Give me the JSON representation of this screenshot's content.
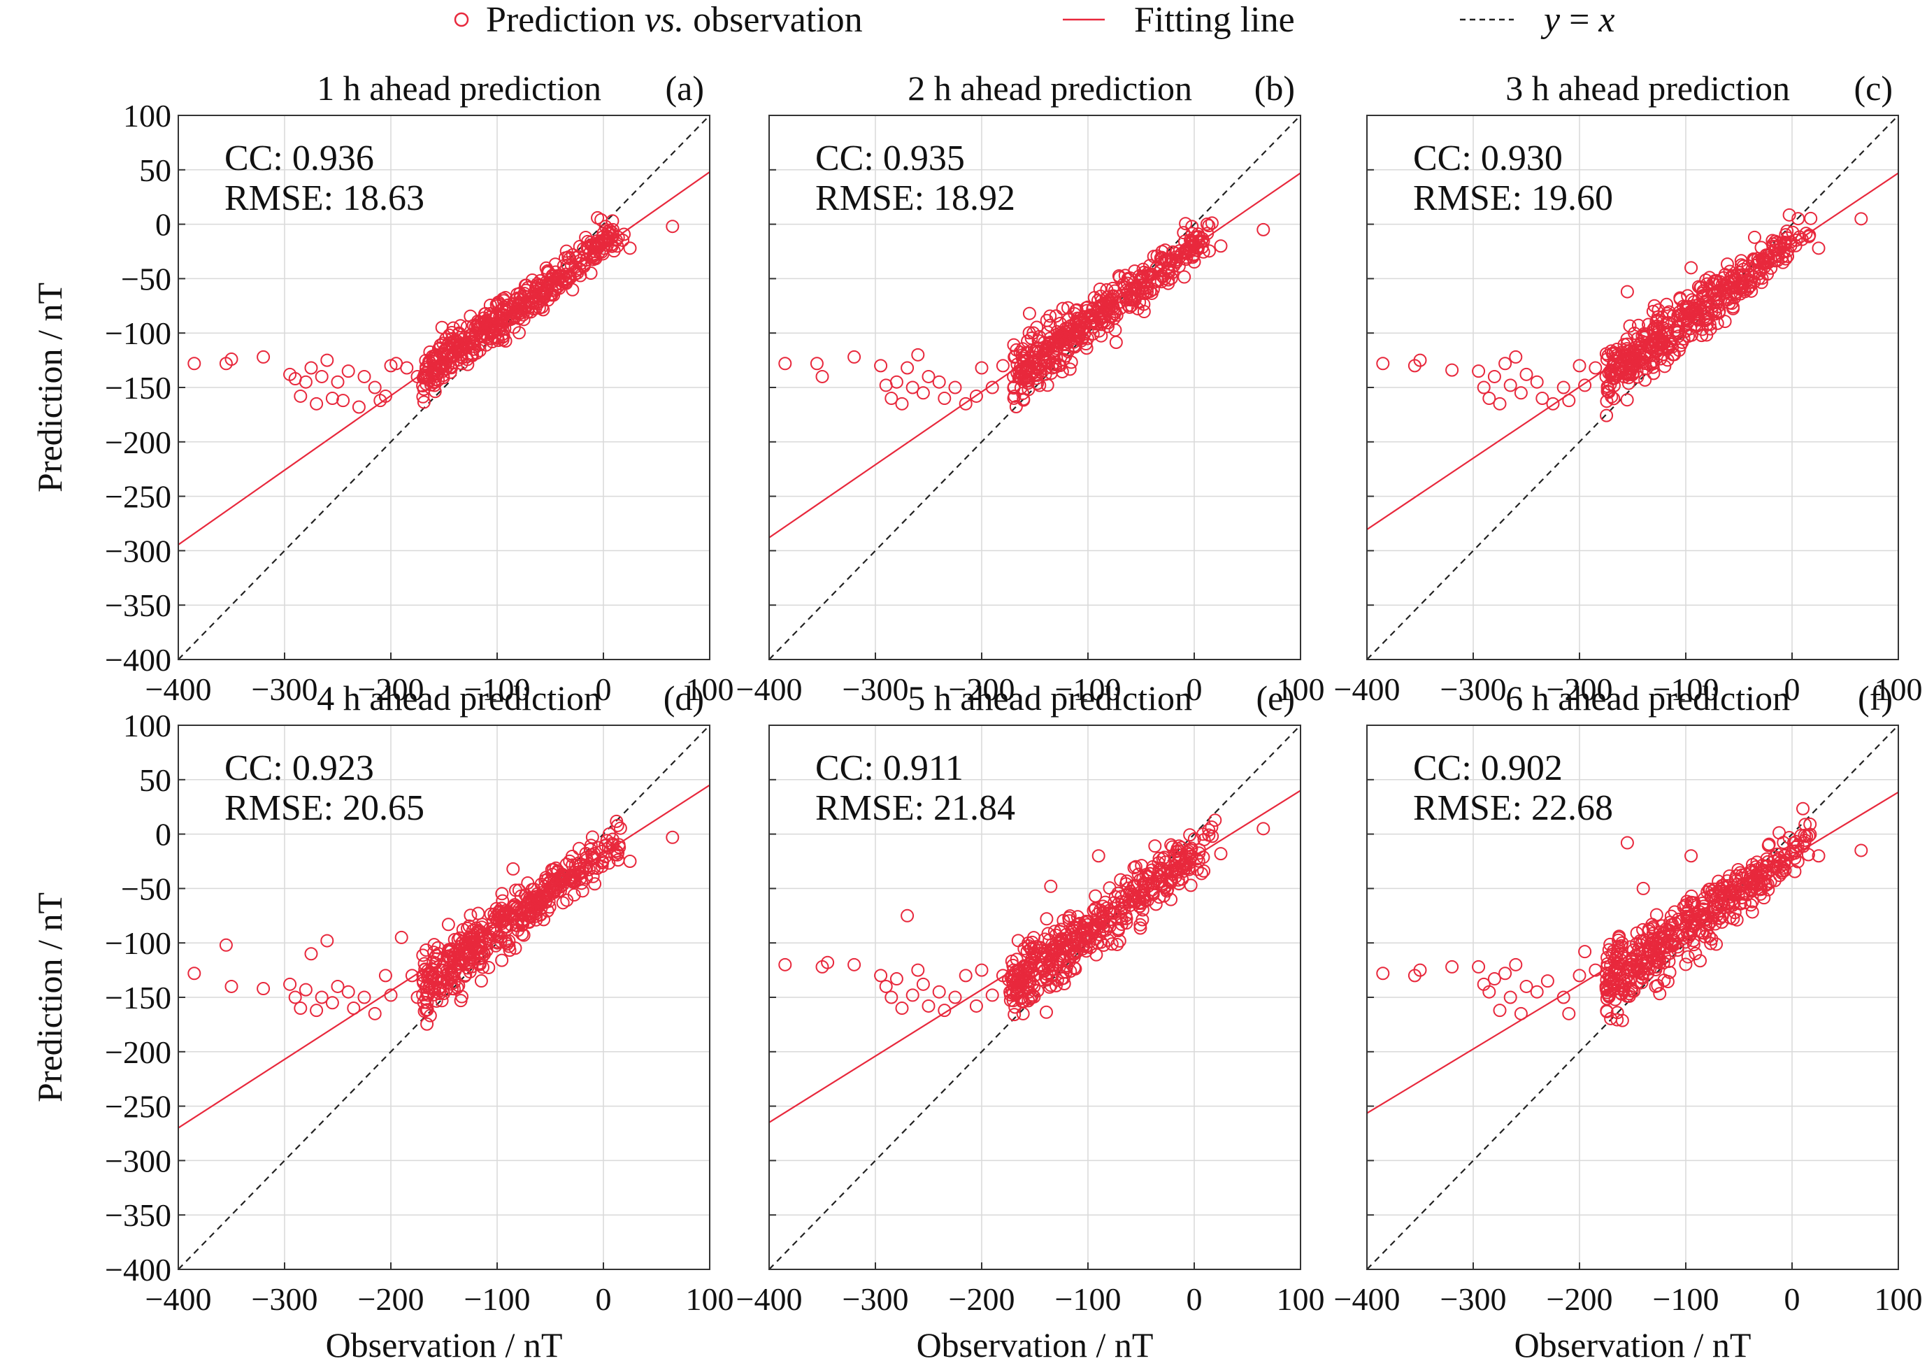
{
  "legend": {
    "scatter_label": "Prediction",
    "scatter_label_vs": "vs.",
    "scatter_label_tail": "observation",
    "fit_label": "Fitting line",
    "ident_label_y": "y",
    "ident_label_eq": " = ",
    "ident_label_x": "x"
  },
  "colors": {
    "scatter": "#e8283c",
    "fit": "#e8283c",
    "identity": "#222222",
    "grid": "#d9d9d9",
    "axis": "#333333"
  },
  "chart_data": [
    {
      "type": "scatter",
      "title": "1 h ahead prediction",
      "tag": "(a)",
      "cc_text": "CC: 0.936",
      "rmse_text": "RMSE: 18.63",
      "xlabel": "",
      "ylabel": "Prediction / nT",
      "xlim": [
        -400,
        100
      ],
      "ylim": [
        -400,
        100
      ],
      "xticks": [
        "−400",
        "−300",
        "−200",
        "−100",
        "0",
        "100"
      ],
      "yticks": [
        "100",
        "50",
        "0",
        "−50",
        "−100",
        "−150",
        "−200",
        "−250",
        "−300",
        "−350",
        "−400"
      ],
      "fit": {
        "slope": 0.685,
        "intercept": -20.5
      },
      "outliers": [
        [
          -385,
          -128
        ],
        [
          -355,
          -128
        ],
        [
          -350,
          -124
        ],
        [
          -320,
          -122
        ],
        [
          -295,
          -138
        ],
        [
          -290,
          -142
        ],
        [
          -285,
          -158
        ],
        [
          -280,
          -145
        ],
        [
          -275,
          -132
        ],
        [
          -270,
          -165
        ],
        [
          -265,
          -140
        ],
        [
          -260,
          -125
        ],
        [
          -255,
          -160
        ],
        [
          -250,
          -145
        ],
        [
          -245,
          -162
        ],
        [
          -240,
          -135
        ],
        [
          -230,
          -168
        ],
        [
          -225,
          -140
        ],
        [
          -215,
          -150
        ],
        [
          -210,
          -162
        ],
        [
          -205,
          -158
        ],
        [
          -200,
          -130
        ],
        [
          -195,
          -128
        ],
        [
          -185,
          -132
        ],
        [
          -175,
          -140
        ],
        [
          65,
          -2
        ],
        [
          25,
          -22
        ]
      ],
      "main": {
        "x0": -170,
        "x1": 20,
        "noise": 12,
        "n": 430,
        "seed": 11,
        "slope": 0.72,
        "intercept": -18
      }
    },
    {
      "type": "scatter",
      "title": "2 h ahead prediction",
      "tag": "(b)",
      "cc_text": "CC: 0.935",
      "rmse_text": "RMSE: 18.92",
      "xlabel": "",
      "ylabel": "",
      "xlim": [
        -400,
        100
      ],
      "ylim": [
        -400,
        100
      ],
      "xticks": [
        "−400",
        "−300",
        "−200",
        "−100",
        "0",
        "100"
      ],
      "yticks": [],
      "fit": {
        "slope": 0.67,
        "intercept": -20
      },
      "outliers": [
        [
          -385,
          -128
        ],
        [
          -355,
          -128
        ],
        [
          -350,
          -140
        ],
        [
          -320,
          -122
        ],
        [
          -295,
          -130
        ],
        [
          -290,
          -148
        ],
        [
          -285,
          -160
        ],
        [
          -280,
          -145
        ],
        [
          -275,
          -165
        ],
        [
          -270,
          -132
        ],
        [
          -265,
          -150
        ],
        [
          -260,
          -120
        ],
        [
          -255,
          -155
        ],
        [
          -250,
          -140
        ],
        [
          -240,
          -145
        ],
        [
          -235,
          -160
        ],
        [
          -225,
          -150
        ],
        [
          -215,
          -165
        ],
        [
          -205,
          -158
        ],
        [
          -200,
          -132
        ],
        [
          -190,
          -150
        ],
        [
          -180,
          -130
        ],
        [
          -170,
          -140
        ],
        [
          -155,
          -82
        ],
        [
          65,
          -5
        ],
        [
          25,
          -20
        ]
      ],
      "main": {
        "x0": -170,
        "x1": 20,
        "noise": 13,
        "n": 430,
        "seed": 23,
        "slope": 0.72,
        "intercept": -18
      }
    },
    {
      "type": "scatter",
      "title": "3 h ahead prediction",
      "tag": "(c)",
      "cc_text": "CC: 0.930",
      "rmse_text": "RMSE: 19.60",
      "xlabel": "",
      "ylabel": "",
      "xlim": [
        -400,
        100
      ],
      "ylim": [
        -400,
        100
      ],
      "xticks": [
        "−400",
        "−300",
        "−200",
        "−100",
        "0",
        "100"
      ],
      "yticks": [],
      "fit": {
        "slope": 0.655,
        "intercept": -18.5
      },
      "outliers": [
        [
          -385,
          -128
        ],
        [
          -355,
          -130
        ],
        [
          -350,
          -125
        ],
        [
          -320,
          -134
        ],
        [
          -295,
          -135
        ],
        [
          -290,
          -150
        ],
        [
          -285,
          -160
        ],
        [
          -280,
          -140
        ],
        [
          -275,
          -165
        ],
        [
          -270,
          -128
        ],
        [
          -265,
          -148
        ],
        [
          -260,
          -122
        ],
        [
          -255,
          -155
        ],
        [
          -250,
          -138
        ],
        [
          -240,
          -145
        ],
        [
          -235,
          -160
        ],
        [
          -225,
          -165
        ],
        [
          -215,
          -150
        ],
        [
          -210,
          -162
        ],
        [
          -200,
          -130
        ],
        [
          -195,
          -148
        ],
        [
          -185,
          -132
        ],
        [
          -175,
          -140
        ],
        [
          -155,
          -62
        ],
        [
          -95,
          -40
        ],
        [
          65,
          5
        ],
        [
          25,
          -22
        ]
      ],
      "main": {
        "x0": -175,
        "x1": 20,
        "noise": 14,
        "n": 430,
        "seed": 37,
        "slope": 0.72,
        "intercept": -17
      }
    },
    {
      "type": "scatter",
      "title": "4 h ahead prediction",
      "tag": "(d)",
      "cc_text": "CC: 0.923",
      "rmse_text": "RMSE: 20.65",
      "xlabel": "Observation / nT",
      "ylabel": "Prediction / nT",
      "xlim": [
        -400,
        100
      ],
      "ylim": [
        -400,
        100
      ],
      "xticks": [
        "−400",
        "−300",
        "−200",
        "−100",
        "0",
        "100"
      ],
      "yticks": [
        "100",
        "50",
        "0",
        "−50",
        "−100",
        "−150",
        "−200",
        "−250",
        "−300",
        "−350",
        "−400"
      ],
      "fit": {
        "slope": 0.63,
        "intercept": -18
      },
      "outliers": [
        [
          -385,
          -128
        ],
        [
          -355,
          -102
        ],
        [
          -350,
          -140
        ],
        [
          -320,
          -142
        ],
        [
          -295,
          -138
        ],
        [
          -290,
          -150
        ],
        [
          -285,
          -160
        ],
        [
          -280,
          -143
        ],
        [
          -275,
          -110
        ],
        [
          -270,
          -162
        ],
        [
          -265,
          -150
        ],
        [
          -260,
          -98
        ],
        [
          -255,
          -155
        ],
        [
          -250,
          -140
        ],
        [
          -240,
          -145
        ],
        [
          -235,
          -160
        ],
        [
          -225,
          -150
        ],
        [
          -215,
          -165
        ],
        [
          -205,
          -130
        ],
        [
          -200,
          -148
        ],
        [
          -190,
          -95
        ],
        [
          -180,
          -130
        ],
        [
          -175,
          -150
        ],
        [
          -165,
          -148
        ],
        [
          -155,
          -110
        ],
        [
          -140,
          -97
        ],
        [
          -85,
          -32
        ],
        [
          65,
          -3
        ],
        [
          25,
          -25
        ]
      ],
      "main": {
        "x0": -170,
        "x1": 20,
        "noise": 15,
        "n": 440,
        "seed": 53,
        "slope": 0.72,
        "intercept": -17
      }
    },
    {
      "type": "scatter",
      "title": "5 h ahead prediction",
      "tag": "(e)",
      "cc_text": "CC: 0.911",
      "rmse_text": "RMSE: 21.84",
      "xlabel": "Observation / nT",
      "ylabel": "",
      "xlim": [
        -400,
        100
      ],
      "ylim": [
        -400,
        100
      ],
      "xticks": [
        "−400",
        "−300",
        "−200",
        "−100",
        "0",
        "100"
      ],
      "yticks": [],
      "fit": {
        "slope": 0.61,
        "intercept": -21
      },
      "outliers": [
        [
          -385,
          -120
        ],
        [
          -350,
          -122
        ],
        [
          -345,
          -118
        ],
        [
          -320,
          -120
        ],
        [
          -295,
          -130
        ],
        [
          -290,
          -140
        ],
        [
          -285,
          -150
        ],
        [
          -280,
          -133
        ],
        [
          -275,
          -160
        ],
        [
          -270,
          -75
        ],
        [
          -265,
          -148
        ],
        [
          -260,
          -125
        ],
        [
          -255,
          -138
        ],
        [
          -250,
          -158
        ],
        [
          -240,
          -145
        ],
        [
          -235,
          -162
        ],
        [
          -225,
          -150
        ],
        [
          -215,
          -130
        ],
        [
          -205,
          -158
        ],
        [
          -200,
          -125
        ],
        [
          -190,
          -148
        ],
        [
          -180,
          -130
        ],
        [
          -170,
          -125
        ],
        [
          -135,
          -48
        ],
        [
          -90,
          -20
        ],
        [
          -55,
          -30
        ],
        [
          65,
          5
        ],
        [
          25,
          -18
        ]
      ],
      "main": {
        "x0": -175,
        "x1": 20,
        "noise": 16,
        "n": 440,
        "seed": 71,
        "slope": 0.71,
        "intercept": -18
      }
    },
    {
      "type": "scatter",
      "title": "6 h ahead prediction",
      "tag": "(f)",
      "cc_text": "CC: 0.902",
      "rmse_text": "RMSE: 22.68",
      "xlabel": "Observation / nT",
      "ylabel": "",
      "xlim": [
        -400,
        100
      ],
      "ylim": [
        -400,
        100
      ],
      "xticks": [
        "−400",
        "−300",
        "−200",
        "−100",
        "0",
        "100"
      ],
      "yticks": [],
      "fit": {
        "slope": 0.59,
        "intercept": -20.5
      },
      "outliers": [
        [
          -385,
          -128
        ],
        [
          -355,
          -130
        ],
        [
          -350,
          -125
        ],
        [
          -320,
          -122
        ],
        [
          -295,
          -122
        ],
        [
          -290,
          -138
        ],
        [
          -285,
          -145
        ],
        [
          -280,
          -133
        ],
        [
          -275,
          -162
        ],
        [
          -270,
          -128
        ],
        [
          -265,
          -150
        ],
        [
          -260,
          -120
        ],
        [
          -255,
          -165
        ],
        [
          -250,
          -140
        ],
        [
          -240,
          -145
        ],
        [
          -230,
          -135
        ],
        [
          -215,
          -150
        ],
        [
          -210,
          -165
        ],
        [
          -200,
          -130
        ],
        [
          -195,
          -108
        ],
        [
          -185,
          -125
        ],
        [
          -175,
          -140
        ],
        [
          -160,
          -100
        ],
        [
          -155,
          -8
        ],
        [
          -140,
          -50
        ],
        [
          -95,
          -20
        ],
        [
          -65,
          -60
        ],
        [
          65,
          -15
        ],
        [
          25,
          -20
        ]
      ],
      "main": {
        "x0": -175,
        "x1": 20,
        "noise": 18,
        "n": 450,
        "seed": 97,
        "slope": 0.7,
        "intercept": -18
      }
    }
  ]
}
